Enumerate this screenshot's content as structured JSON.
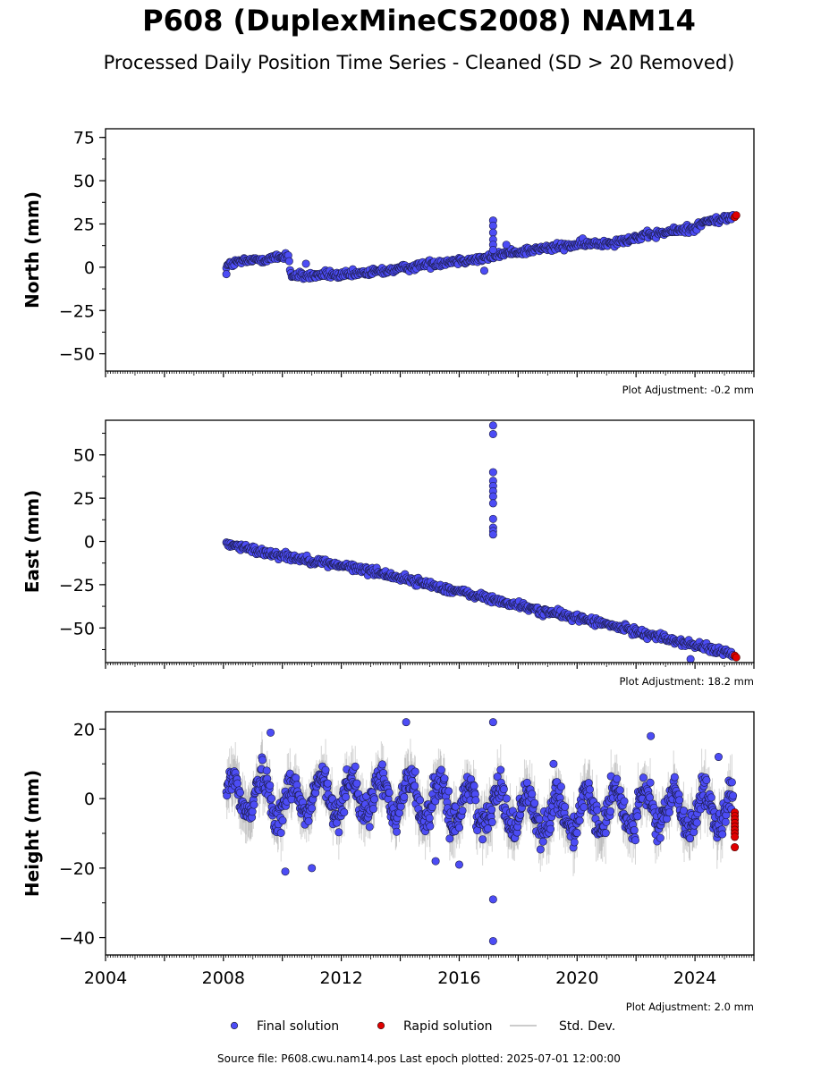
{
  "figure": {
    "title": "P608 (DuplexMineCS2008) NAM14",
    "subtitle": "Processed Daily Position Time Series - Cleaned (SD > 20 Removed)",
    "source_note": "Source file: P608.cwu.nam14.pos  Last epoch plotted: 2025-07-01 12:00:00"
  },
  "colors": {
    "final": "#4c4cf5",
    "rapid": "#e00000",
    "stddev": "#999999",
    "axis": "#000000"
  },
  "chart_data": [
    {
      "type": "scatter",
      "name": "north",
      "ylabel": "North (mm)",
      "xlim": [
        2004.0,
        2026.0
      ],
      "ylim": [
        -60,
        80
      ],
      "yticks": [
        75,
        50,
        25,
        0,
        -25,
        -50
      ],
      "ytick_labels": [
        "75",
        "50",
        "25",
        "0",
        "−25",
        "−50"
      ],
      "adjustment": "Plot Adjustment: -0.2 mm",
      "final_series": {
        "x": [
          2008.1,
          2008.5,
          2009.0,
          2009.5,
          2010.0,
          2010.2,
          2010.3,
          2011.0,
          2011.5,
          2012.0,
          2013.0,
          2014.0,
          2015.0,
          2016.0,
          2016.9,
          2017.2,
          2018.0,
          2019.0,
          2020.0,
          2021.0,
          2022.0,
          2023.0,
          2024.0,
          2024.3,
          2025.0,
          2025.3
        ],
        "y": [
          1,
          3,
          4,
          5,
          6,
          7,
          -5,
          -5,
          -4,
          -5,
          -3,
          -1,
          2,
          4,
          5,
          7,
          9,
          11,
          13,
          14,
          17,
          20,
          23,
          26,
          28,
          29
        ]
      },
      "outliers": {
        "x": [
          2017.15,
          2017.15,
          2017.15,
          2017.15,
          2017.15,
          2017.15,
          2016.85,
          2017.6,
          2008.1,
          2010.8
        ],
        "y": [
          27,
          24,
          20,
          16,
          13,
          10,
          -2,
          13,
          -4,
          2
        ]
      },
      "rapid_series": {
        "x": [
          2025.35,
          2025.4
        ],
        "y": [
          29,
          30
        ]
      }
    },
    {
      "type": "scatter",
      "name": "east",
      "ylabel": "East (mm)",
      "xlim": [
        2004.0,
        2026.0
      ],
      "ylim": [
        -70,
        70
      ],
      "yticks": [
        50,
        25,
        0,
        -25,
        -50
      ],
      "ytick_labels": [
        "50",
        "25",
        "0",
        "−25",
        "−50"
      ],
      "adjustment": "Plot Adjustment: 18.2 mm",
      "final_series": {
        "x": [
          2008.1,
          2009.0,
          2010.0,
          2011.0,
          2012.0,
          2013.0,
          2014.0,
          2015.0,
          2016.0,
          2017.0,
          2018.0,
          2019.0,
          2020.0,
          2021.0,
          2022.0,
          2023.0,
          2024.0,
          2025.0,
          2025.3
        ],
        "y": [
          -1,
          -5,
          -8,
          -11,
          -14,
          -17,
          -21,
          -25,
          -29,
          -33,
          -37,
          -41,
          -44,
          -48,
          -52,
          -56,
          -60,
          -64,
          -66
        ]
      },
      "outliers": {
        "x": [
          2017.15,
          2017.15,
          2017.15,
          2017.15,
          2017.15,
          2017.15,
          2017.15,
          2017.15,
          2017.15,
          2017.15,
          2017.15,
          2017.15,
          2023.85
        ],
        "y": [
          67,
          62,
          40,
          35,
          32,
          29,
          26,
          22,
          13,
          8,
          6,
          4,
          -68
        ]
      },
      "rapid_series": {
        "x": [
          2025.35,
          2025.4
        ],
        "y": [
          -66,
          -67
        ]
      }
    },
    {
      "type": "scatter",
      "name": "height",
      "ylabel": "Height (mm)",
      "xlim": [
        2004.0,
        2026.0
      ],
      "ylim": [
        -45,
        25
      ],
      "yticks": [
        20,
        0,
        -20,
        -40
      ],
      "ytick_labels": [
        "20",
        "0",
        "−20",
        "−40"
      ],
      "xticks": [
        2004,
        2008,
        2012,
        2016,
        2020,
        2024
      ],
      "xtick_labels": [
        "2004",
        "2008",
        "2012",
        "2016",
        "2020",
        "2024"
      ],
      "adjustment": "Plot Adjustment: 2.0 mm",
      "final_series": {
        "x": [
          2008.1,
          2008.5,
          2009.0,
          2009.5,
          2010.0,
          2010.5,
          2011.0,
          2011.5,
          2012.0,
          2012.5,
          2013.0,
          2013.5,
          2014.0,
          2014.5,
          2015.0,
          2015.5,
          2016.0,
          2016.5,
          2017.0,
          2017.5,
          2018.0,
          2018.5,
          2019.0,
          2019.5,
          2020.0,
          2020.5,
          2021.0,
          2021.5,
          2022.0,
          2022.5,
          2023.0,
          2023.5,
          2024.0,
          2024.5,
          2025.0,
          2025.3
        ],
        "y": [
          -2,
          6,
          -3,
          8,
          -8,
          5,
          -3,
          6,
          -4,
          7,
          -5,
          7,
          -4,
          6,
          -7,
          3,
          -9,
          2,
          -10,
          2,
          -12,
          -2,
          -14,
          -2,
          -13,
          -3,
          -10,
          -1,
          -9,
          -2,
          -8,
          -4,
          -10,
          -3,
          -10,
          -6
        ],
        "spread": 9
      },
      "outliers": {
        "x": [
          2017.15,
          2017.15,
          2017.15,
          2014.2,
          2009.6,
          2022.5,
          2019.2,
          2010.1,
          2011.0,
          2015.2,
          2016.0,
          2024.8
        ],
        "y": [
          -41,
          -29,
          22,
          22,
          19,
          18,
          10,
          -21,
          -20,
          -18,
          -19,
          12
        ]
      },
      "rapid_series": {
        "x": [
          2025.35,
          2025.35,
          2025.35,
          2025.35,
          2025.35,
          2025.35,
          2025.35,
          2025.35,
          2025.35
        ],
        "y": [
          -4,
          -5,
          -6,
          -7,
          -8,
          -9,
          -10,
          -11,
          -14
        ]
      }
    }
  ],
  "legend": {
    "items": [
      {
        "label": "Final solution",
        "kind": "dot",
        "color": "#4c4cf5"
      },
      {
        "label": "Rapid solution",
        "kind": "dot",
        "color": "#e00000"
      },
      {
        "label": "Std. Dev.",
        "kind": "line",
        "color": "#bbbbbb"
      }
    ]
  }
}
